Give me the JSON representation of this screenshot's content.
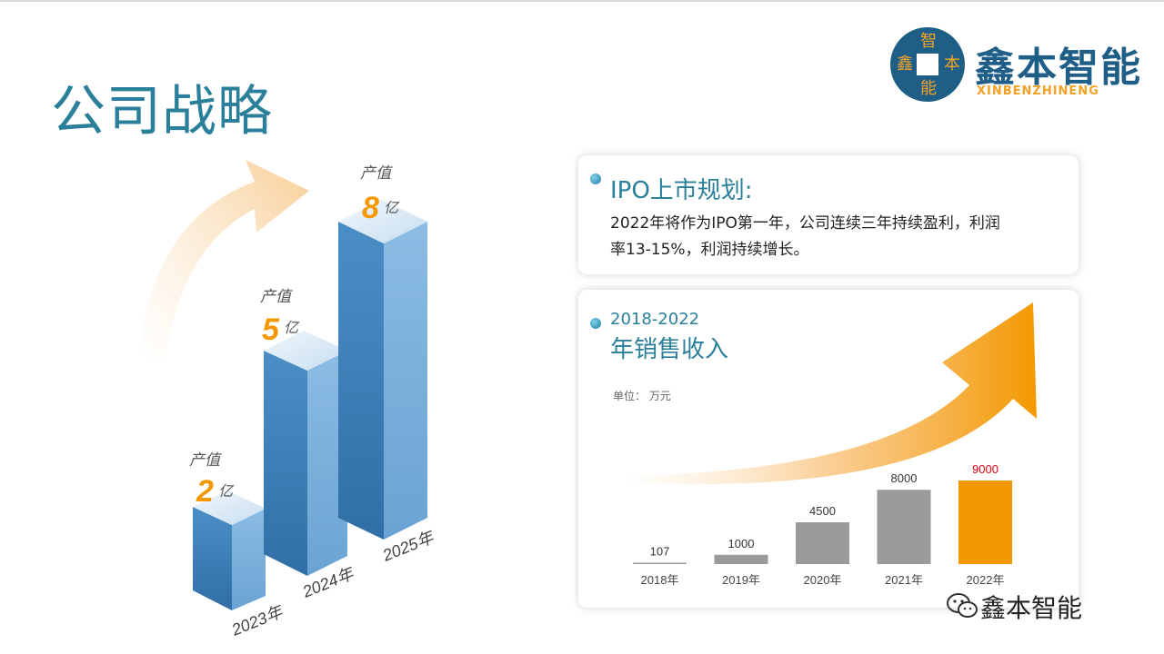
{
  "title": "公司战略",
  "logo": {
    "cn": "鑫本智能",
    "en": "XINBENZHINENG",
    "chars": [
      "智",
      "鑫",
      "本",
      "能"
    ]
  },
  "growth": {
    "items": [
      {
        "label": "产值",
        "value": "2",
        "unit": "亿",
        "year": "2023年"
      },
      {
        "label": "产值",
        "value": "5",
        "unit": "亿",
        "year": "2024年"
      },
      {
        "label": "产值",
        "value": "8",
        "unit": "亿",
        "year": "2025年"
      }
    ]
  },
  "ipo": {
    "heading": "IPO上市规划:",
    "line1": "2022年将作为IPO第一年，公司连续三年持续盈利，利润",
    "line2": "率13-15%，利润持续增长。"
  },
  "revenue": {
    "heading_years": "2018-2022",
    "heading": "年销售收入",
    "unit_label": "单位：  万元"
  },
  "chart_data": {
    "type": "bar",
    "categories": [
      "2018年",
      "2019年",
      "2020年",
      "2021年",
      "2022年"
    ],
    "values": [
      107,
      1000,
      4500,
      8000,
      9000
    ],
    "value_labels": [
      "107",
      "1000",
      "4500",
      "8000",
      "9000"
    ],
    "title": "",
    "ylabel": "单位：  万元",
    "colors": [
      "#9a9b9d",
      "#9a9b9d",
      "#9a9b9d",
      "#9a9b9d",
      "#f39800"
    ],
    "highlight_label_color": "#e60012"
  },
  "watermark": "鑫本智能",
  "colors": {
    "brand_blue": "#1f5e86",
    "teal": "#2a7f9b",
    "orange": "#f39800",
    "bar_blue": "#4a8fc4"
  }
}
